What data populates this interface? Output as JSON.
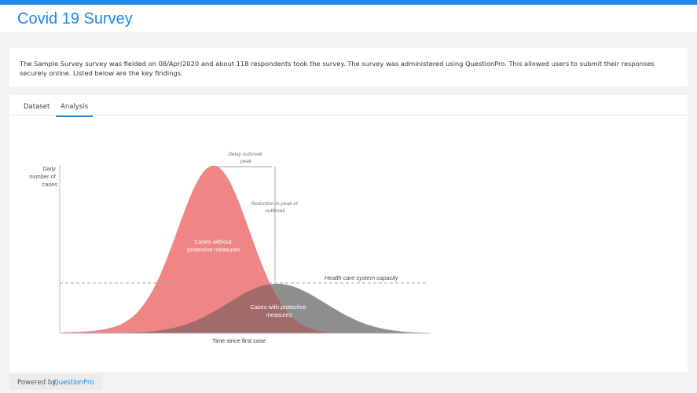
{
  "header": {
    "title": "Covid 19 Survey"
  },
  "intro": {
    "text": "The Sample Survey survey was fielded on 08/Apr/2020 and about 118 respondents took the survey. The survey was administered using QuestionPro. This allowed users to submit their responses securely online. Listed below are the key findings."
  },
  "tabs": [
    {
      "label": "Dataset",
      "active": false
    },
    {
      "label": "Analysis",
      "active": true
    }
  ],
  "infographic": {
    "y_label": [
      "Daily",
      "number of",
      "cases"
    ],
    "x_label": "Time since first case",
    "delay_label": [
      "Delay outbreak",
      "peak"
    ],
    "reduction_label": [
      "Reduction in peak of",
      "outbreak"
    ],
    "capacity_label": "Health care system capacity",
    "without_label": [
      "Cases without",
      "protective measures"
    ],
    "with_label": [
      "Cases with protective",
      "measures"
    ],
    "colors": {
      "without": "#ef8585",
      "with": "#8e8e8e",
      "overlap": "#a36a6a"
    }
  },
  "footer": {
    "powered_by": "Powered by",
    "brand": "QuestionPro",
    "brand_color": "#1b87e6"
  }
}
